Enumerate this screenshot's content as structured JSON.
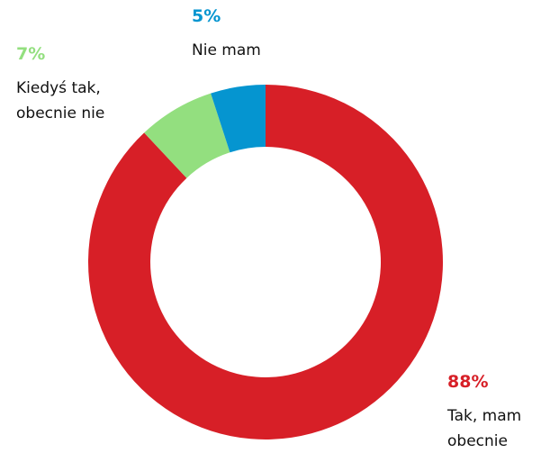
{
  "chart_data": {
    "type": "donut",
    "categories": [
      "Tak, mam obecnie",
      "Kiedyś tak, obecnie nie",
      "Nie mam"
    ],
    "values": [
      88,
      7,
      5
    ],
    "value_labels": [
      "88%",
      "7%",
      "5%"
    ],
    "colors": [
      "#d71f27",
      "#93df7f",
      "#0595d0"
    ]
  }
}
